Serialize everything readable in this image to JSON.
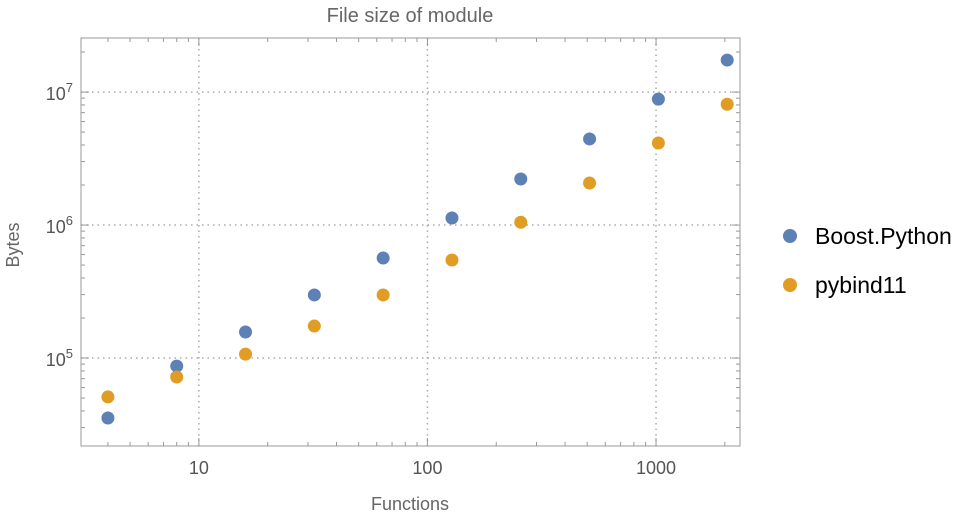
{
  "chart_data": {
    "type": "scatter",
    "title": "File size of module",
    "xlabel": "Functions",
    "ylabel": "Bytes",
    "xscale": "log",
    "yscale": "log",
    "xlim": [
      3.05,
      2330
    ],
    "ylim": [
      21800,
      25500000
    ],
    "grid": true,
    "legend_position": "right",
    "x_ticks": [
      {
        "value": 10,
        "label": "10"
      },
      {
        "value": 100,
        "label": "100"
      },
      {
        "value": 1000,
        "label": "1000"
      }
    ],
    "y_ticks": [
      {
        "value": 100000,
        "base": "10",
        "exp": "5"
      },
      {
        "value": 1000000,
        "base": "10",
        "exp": "6"
      },
      {
        "value": 10000000,
        "base": "10",
        "exp": "7"
      }
    ],
    "x": [
      4,
      8,
      16,
      32,
      64,
      128,
      256,
      512,
      1024,
      2048
    ],
    "series": [
      {
        "name": "Boost.Python",
        "color": "#5e81b5",
        "values": [
          35400,
          87000,
          157000,
          298000,
          565000,
          1130000,
          2220000,
          4440000,
          8850000,
          17400000
        ]
      },
      {
        "name": "pybind11",
        "color": "#e19c24",
        "values": [
          51000,
          72000,
          107000,
          174000,
          298000,
          546000,
          1050000,
          2070000,
          4140000,
          8100000
        ]
      }
    ]
  }
}
